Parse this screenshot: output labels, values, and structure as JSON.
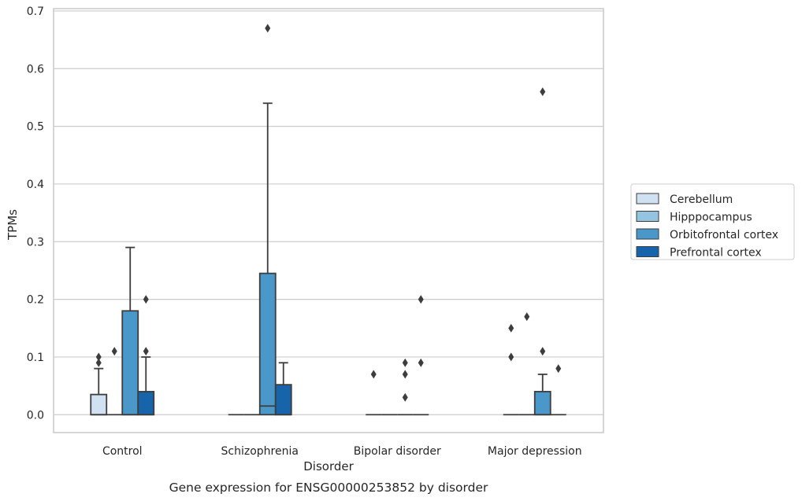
{
  "chart_data": {
    "type": "box",
    "caption": "Gene expression for ENSG00000253852 by disorder",
    "xlabel": "Disorder",
    "ylabel": "TPMs",
    "ylim": [
      -0.031,
      0.704
    ],
    "yticks": [
      "0.0",
      "0.1",
      "0.2",
      "0.3",
      "0.4",
      "0.5",
      "0.6",
      "0.7"
    ],
    "ytick_values": [
      0,
      0.1,
      0.2,
      0.3,
      0.4,
      0.5,
      0.6,
      0.7
    ],
    "grid": true,
    "legend_position": "right",
    "categories": [
      "Control",
      "Schizophrenia",
      "Bipolar disorder",
      "Major depression"
    ],
    "series": [
      {
        "name": "Cerebellum",
        "color": "#d0e1f2",
        "boxes": [
          {
            "q1": 0,
            "median": 0,
            "q3": 0.035,
            "whisker_low": 0,
            "whisker_high": 0.08,
            "outliers": [
              0.09,
              0.1
            ]
          },
          {
            "q1": 0,
            "median": 0,
            "q3": 0,
            "whisker_low": 0,
            "whisker_high": 0,
            "outliers": []
          },
          {
            "q1": 0,
            "median": 0,
            "q3": 0,
            "whisker_low": 0,
            "whisker_high": 0,
            "outliers": [
              0.07
            ]
          },
          {
            "q1": 0,
            "median": 0,
            "q3": 0,
            "whisker_low": 0,
            "whisker_high": 0,
            "outliers": [
              0.1,
              0.15
            ]
          }
        ]
      },
      {
        "name": "Hipppocampus",
        "color": "#94c4df",
        "boxes": [
          {
            "q1": 0,
            "median": 0,
            "q3": 0,
            "whisker_low": 0,
            "whisker_high": 0,
            "outliers": [
              0.11
            ]
          },
          {
            "q1": 0,
            "median": 0,
            "q3": 0,
            "whisker_low": 0,
            "whisker_high": 0,
            "outliers": []
          },
          {
            "q1": 0,
            "median": 0,
            "q3": 0,
            "whisker_low": 0,
            "whisker_high": 0,
            "outliers": []
          },
          {
            "q1": 0,
            "median": 0,
            "q3": 0,
            "whisker_low": 0,
            "whisker_high": 0,
            "outliers": [
              0.17
            ]
          }
        ]
      },
      {
        "name": "Orbitofrontal cortex",
        "color": "#4a98c9",
        "boxes": [
          {
            "q1": 0,
            "median": 0,
            "q3": 0.18,
            "whisker_low": 0,
            "whisker_high": 0.29,
            "outliers": []
          },
          {
            "q1": 0,
            "median": 0.015,
            "q3": 0.245,
            "whisker_low": 0,
            "whisker_high": 0.54,
            "outliers": [
              0.67
            ]
          },
          {
            "q1": 0,
            "median": 0,
            "q3": 0,
            "whisker_low": 0,
            "whisker_high": 0,
            "outliers": [
              0.03,
              0.07,
              0.09
            ]
          },
          {
            "q1": 0,
            "median": 0,
            "q3": 0.04,
            "whisker_low": 0,
            "whisker_high": 0.07,
            "outliers": [
              0.11,
              0.56
            ]
          }
        ]
      },
      {
        "name": "Prefrontal cortex",
        "color": "#1764ab",
        "boxes": [
          {
            "q1": 0,
            "median": 0,
            "q3": 0.04,
            "whisker_low": 0,
            "whisker_high": 0.1,
            "outliers": [
              0.11,
              0.2
            ]
          },
          {
            "q1": 0,
            "median": 0,
            "q3": 0.052,
            "whisker_low": 0,
            "whisker_high": 0.09,
            "outliers": []
          },
          {
            "q1": 0,
            "median": 0,
            "q3": 0,
            "whisker_low": 0,
            "whisker_high": 0,
            "outliers": [
              0.09,
              0.2
            ]
          },
          {
            "q1": 0,
            "median": 0,
            "q3": 0,
            "whisker_low": 0,
            "whisker_high": 0,
            "outliers": [
              0.08
            ]
          }
        ]
      }
    ]
  }
}
